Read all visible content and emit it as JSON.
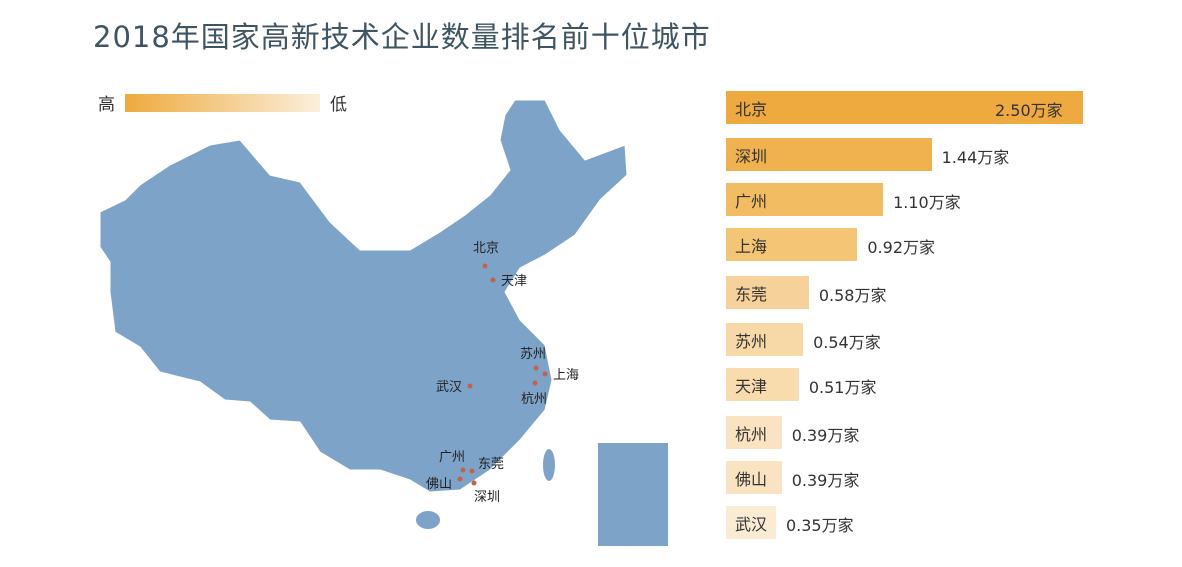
{
  "chart_data": {
    "type": "bar",
    "title": "2018年国家高新技术企业数量排名前十位城市",
    "orientation": "horizontal",
    "unit": "万家",
    "categories": [
      "北京",
      "深圳",
      "广州",
      "上海",
      "东莞",
      "苏州",
      "天津",
      "杭州",
      "佛山",
      "武汉"
    ],
    "values": [
      2.5,
      1.44,
      1.1,
      0.92,
      0.58,
      0.54,
      0.51,
      0.39,
      0.39,
      0.35
    ],
    "value_labels": [
      "2.50万家",
      "1.44万家",
      "1.10万家",
      "0.92万家",
      "0.58万家",
      "0.54万家",
      "0.51万家",
      "0.39万家",
      "0.39万家",
      "0.35万家"
    ],
    "colors": [
      "#eeaa3e",
      "#f0b24f",
      "#f2bc63",
      "#f4c575",
      "#f6d29a",
      "#f7d9a8",
      "#f8dcae",
      "#f9e3c0",
      "#f9e3c0",
      "#faebd3"
    ],
    "legend": {
      "high": "高",
      "low": "低",
      "high_color": "#eeaa3e",
      "low_color": "#fbefdc"
    },
    "map": {
      "fill": "#7ea3c9",
      "cities": [
        "北京",
        "天津",
        "苏州",
        "上海",
        "杭州",
        "武汉",
        "广州",
        "东莞",
        "佛山",
        "深圳"
      ],
      "dot_color": "#c0634a"
    }
  }
}
